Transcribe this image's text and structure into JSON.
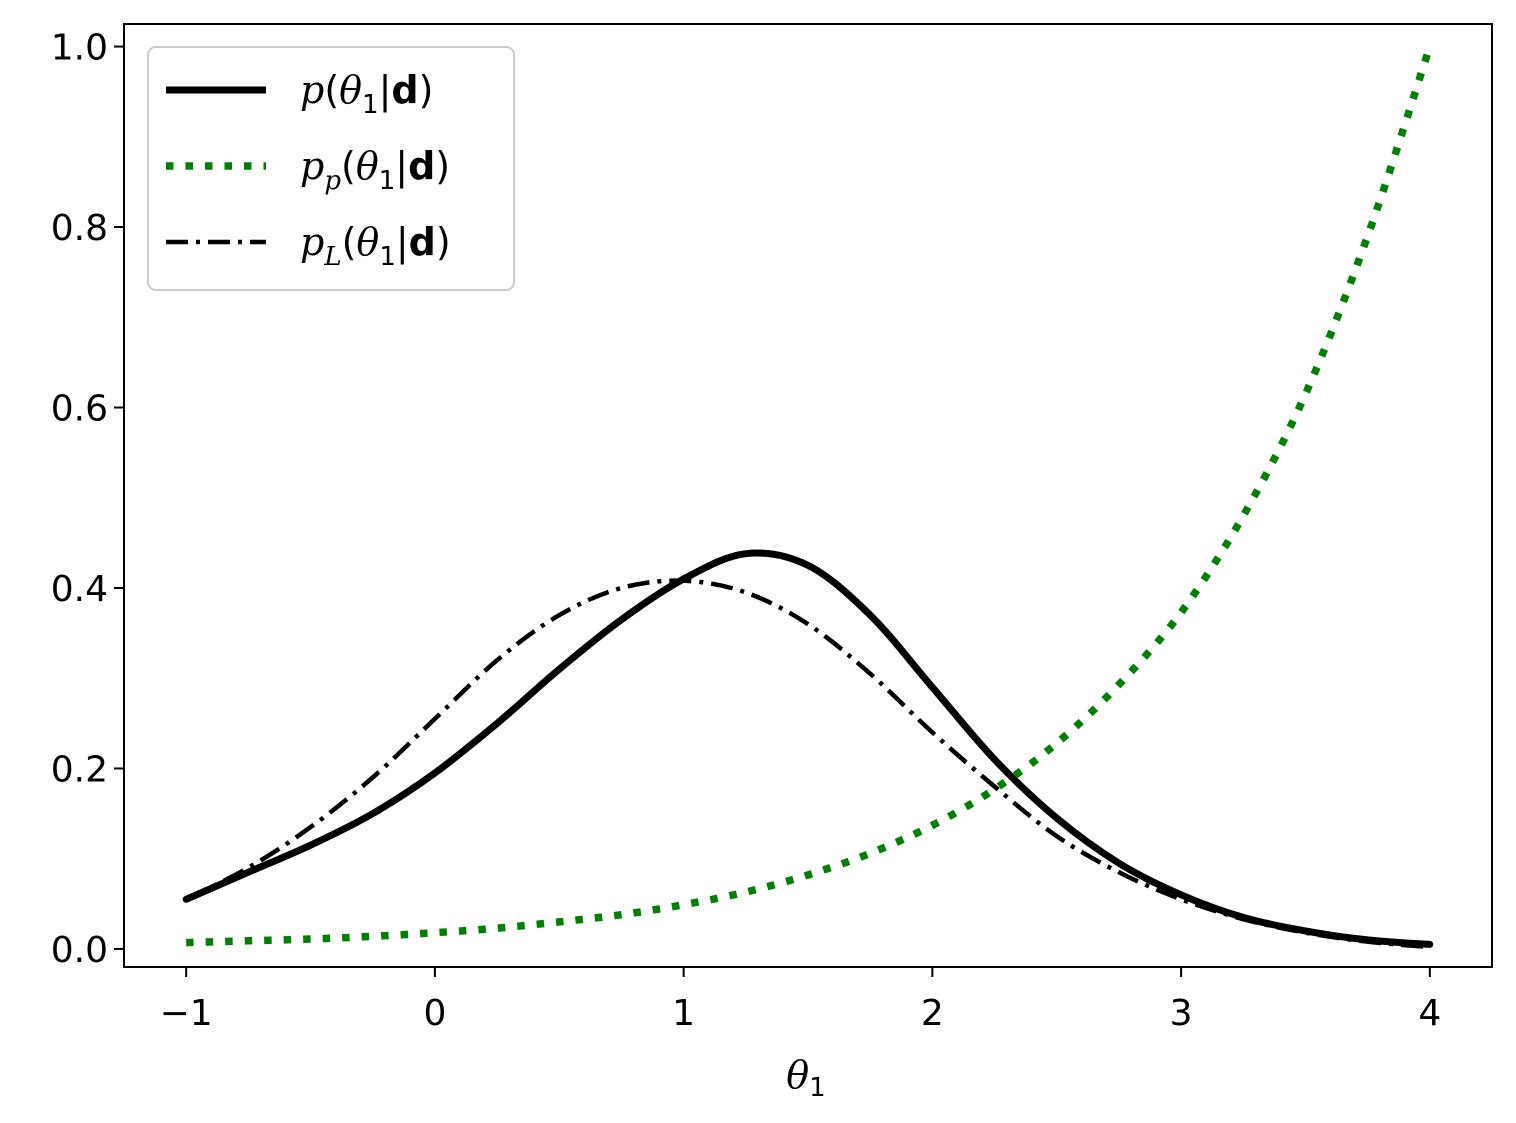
{
  "chart_data": {
    "type": "line",
    "title": "",
    "xlabel": {
      "base": "θ",
      "sub": "1"
    },
    "ylabel": "",
    "xlim": [
      -1.25,
      4.25
    ],
    "ylim": [
      -0.02,
      1.025
    ],
    "xticks": [
      -1,
      0,
      1,
      2,
      3,
      4
    ],
    "xtick_labels": [
      "−1",
      "0",
      "1",
      "2",
      "3",
      "4"
    ],
    "yticks": [
      0.0,
      0.2,
      0.4,
      0.6,
      0.8,
      1.0
    ],
    "ytick_labels": [
      "0.0",
      "0.2",
      "0.4",
      "0.6",
      "0.8",
      "1.0"
    ],
    "grid": false,
    "legend_position": "top-left",
    "x": [
      -1.0,
      -0.75,
      -0.5,
      -0.25,
      0.0,
      0.25,
      0.5,
      0.75,
      1.0,
      1.25,
      1.5,
      1.75,
      2.0,
      2.25,
      2.5,
      2.75,
      3.0,
      3.25,
      3.5,
      3.75,
      4.0
    ],
    "series": [
      {
        "name": "p(θ1|d)",
        "legend": {
          "main": "p",
          "sub": "",
          "cond": "d"
        },
        "style": "solid",
        "color": "#000000",
        "values": [
          0.055,
          0.085,
          0.115,
          0.15,
          0.195,
          0.25,
          0.31,
          0.365,
          0.41,
          0.438,
          0.425,
          0.37,
          0.29,
          0.21,
          0.145,
          0.095,
          0.06,
          0.035,
          0.02,
          0.01,
          0.005
        ]
      },
      {
        "name": "pp(θ1|d)",
        "legend": {
          "main": "p",
          "sub": "p",
          "cond": "d"
        },
        "style": "dotted",
        "color": "#008000",
        "values": [
          0.007,
          0.009,
          0.011,
          0.014,
          0.018,
          0.023,
          0.03,
          0.038,
          0.049,
          0.063,
          0.082,
          0.106,
          0.137,
          0.177,
          0.228,
          0.293,
          0.373,
          0.48,
          0.615,
          0.79,
          1.0
        ]
      },
      {
        "name": "pL(θ1|d)",
        "legend": {
          "main": "p",
          "sub": "L",
          "cond": "d"
        },
        "style": "dashdot",
        "color": "#000000",
        "values": [
          0.055,
          0.09,
          0.135,
          0.19,
          0.255,
          0.32,
          0.37,
          0.4,
          0.408,
          0.395,
          0.36,
          0.305,
          0.24,
          0.18,
          0.125,
          0.085,
          0.055,
          0.033,
          0.018,
          0.008,
          0.002
        ]
      }
    ]
  }
}
